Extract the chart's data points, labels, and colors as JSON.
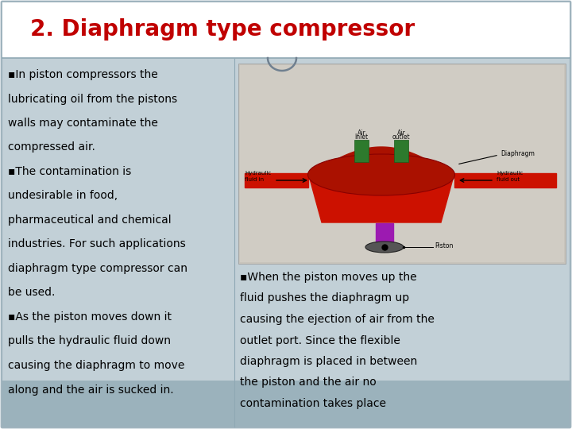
{
  "title": "2. Diaphragm type compressor",
  "title_color": "#c00000",
  "title_fontsize": 20,
  "bg_color": "#ffffff",
  "panel_bg_light": "#b8c8d0",
  "panel_bg_dark": "#8fa8b4",
  "border_color": "#8fa8b4",
  "text_color": "#000000",
  "left_text_lines": [
    "▪In piston compressors the",
    "lubricating oil from the pistons",
    "walls may contaminate the",
    "compressed air.",
    "▪The contamination is",
    "undesirable in food,",
    "pharmaceutical and chemical",
    "industries. For such applications",
    "diaphragm type compressor can",
    "be used.",
    "▪As the piston moves down it",
    "pulls the hydraulic fluid down",
    "causing the diaphragm to move",
    "along and the air is sucked in."
  ],
  "right_text_lines": [
    "▪When the piston moves up the",
    "fluid pushes the diaphragm up",
    "causing the ejection of air from the",
    "outlet port. Since the flexible",
    "diaphragm is placed in between",
    "the piston and the air no",
    "contamination takes place"
  ],
  "ornament_color": "#708090",
  "divider_color": "#8fa8b4",
  "slide_border": "#a0b4be"
}
